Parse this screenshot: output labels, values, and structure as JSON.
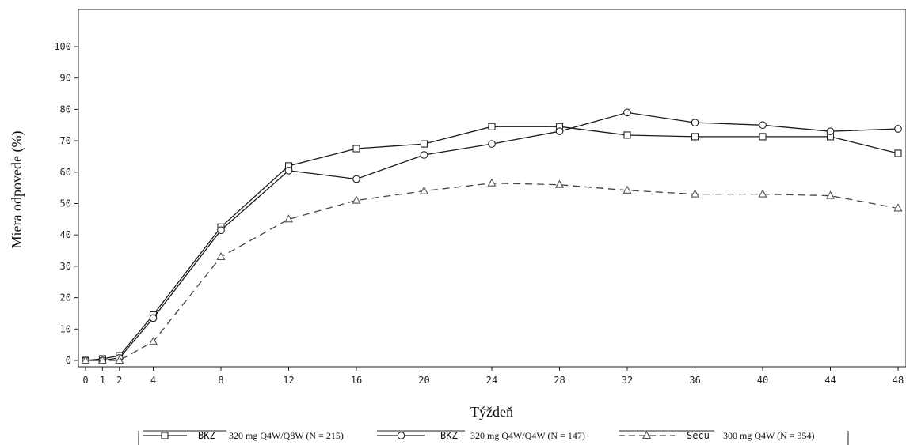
{
  "chart_data": {
    "type": "line",
    "title": "",
    "xlabel": "Týždeň",
    "ylabel": "Miera odpovede (%)",
    "x": [
      0,
      1,
      2,
      4,
      8,
      12,
      16,
      20,
      24,
      28,
      32,
      36,
      40,
      44,
      48
    ],
    "xticks": [
      0,
      1,
      2,
      4,
      8,
      12,
      16,
      20,
      24,
      28,
      32,
      36,
      40,
      44,
      48
    ],
    "yticks": [
      0,
      10,
      20,
      30,
      40,
      50,
      60,
      70,
      80,
      90,
      100
    ],
    "xlim": [
      0,
      48
    ],
    "ylim": [
      0,
      100
    ],
    "grid": false,
    "legend_position": "bottom",
    "series": [
      {
        "name": "BKZ 320 mg Q4W/Q8W (N = 215)",
        "legend_code": "BKZ",
        "legend_desc": "320 mg Q4W/Q8W (N = 215)",
        "marker": "square",
        "dash": "solid",
        "color": "#1a1a1a",
        "values": [
          0,
          0.5,
          1.5,
          14.5,
          42.5,
          62,
          67.5,
          69,
          74.5,
          74.5,
          71.8,
          71.3,
          71.3,
          71.3,
          66
        ]
      },
      {
        "name": "BKZ 320 mg Q4W/Q4W (N = 147)",
        "legend_code": "BKZ",
        "legend_desc": "320 mg Q4W/Q4W (N = 147)",
        "marker": "circle",
        "dash": "solid",
        "color": "#1a1a1a",
        "values": [
          0,
          0,
          0.8,
          13.5,
          41.5,
          60.5,
          57.8,
          65.5,
          69,
          73,
          79,
          75.8,
          75,
          73,
          73.8
        ]
      },
      {
        "name": "Secu 300 mg Q4W (N = 354)",
        "legend_code": "Secu",
        "legend_desc": "300 mg Q4W (N = 354)",
        "marker": "triangle",
        "dash": "dashed",
        "color": "#1a1a1a",
        "values": [
          0,
          0,
          0,
          6,
          33,
          45,
          51,
          54,
          56.5,
          56,
          54.2,
          53,
          53,
          52.5,
          48.5
        ]
      }
    ]
  }
}
